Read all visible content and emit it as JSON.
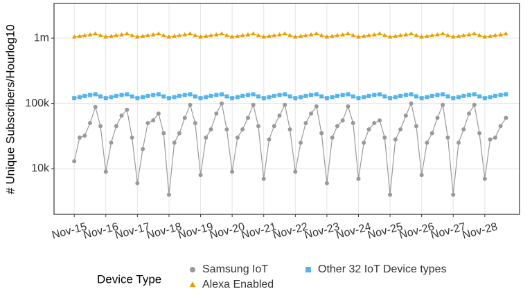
{
  "chart_data": {
    "type": "line",
    "y_label": "# Unique Subscribers/Hourlog10",
    "log_y": true,
    "grid": true,
    "legend_position": "bottom",
    "legend_title": "Device Type",
    "xlim": [
      -0.64,
      14.1
    ],
    "ylim": [
      2000,
      3400000
    ],
    "yticks": [
      {
        "value": 10000,
        "label": "10k"
      },
      {
        "value": 100000,
        "label": "100k"
      },
      {
        "value": 1000000,
        "label": "1m"
      }
    ],
    "xticks": [
      {
        "value": 0,
        "label": "Nov-15"
      },
      {
        "value": 1,
        "label": "Nov-16"
      },
      {
        "value": 2,
        "label": "Nov-17"
      },
      {
        "value": 3,
        "label": "Nov-18"
      },
      {
        "value": 4,
        "label": "Nov-19"
      },
      {
        "value": 5,
        "label": "Nov-20"
      },
      {
        "value": 6,
        "label": "Nov-21"
      },
      {
        "value": 7,
        "label": "Nov-22"
      },
      {
        "value": 8,
        "label": "Nov-23"
      },
      {
        "value": 9,
        "label": "Nov-24"
      },
      {
        "value": 10,
        "label": "Nov-25"
      },
      {
        "value": 11,
        "label": "Nov-26"
      },
      {
        "value": 12,
        "label": "Nov-27"
      },
      {
        "value": 13,
        "label": "Nov-28"
      }
    ],
    "x": [
      0,
      0.17,
      0.33,
      0.5,
      0.67,
      0.83,
      1,
      1.17,
      1.33,
      1.5,
      1.67,
      1.83,
      2,
      2.17,
      2.33,
      2.5,
      2.67,
      2.83,
      3,
      3.17,
      3.33,
      3.5,
      3.67,
      3.83,
      4,
      4.17,
      4.33,
      4.5,
      4.67,
      4.83,
      5,
      5.17,
      5.33,
      5.5,
      5.67,
      5.83,
      6,
      6.17,
      6.33,
      6.5,
      6.67,
      6.83,
      7,
      7.17,
      7.33,
      7.5,
      7.67,
      7.83,
      8,
      8.17,
      8.33,
      8.5,
      8.67,
      8.83,
      9,
      9.17,
      9.33,
      9.5,
      9.67,
      9.83,
      10,
      10.17,
      10.33,
      10.5,
      10.67,
      10.83,
      11,
      11.17,
      11.33,
      11.5,
      11.67,
      11.83,
      12,
      12.17,
      12.33,
      12.5,
      12.67,
      12.83,
      13,
      13.17,
      13.33,
      13.5,
      13.67
    ],
    "series": [
      {
        "name": "Samsung IoT",
        "color": "#999999",
        "marker": "circle",
        "values": [
          13000,
          30000,
          32000,
          50000,
          88000,
          45000,
          9000,
          25000,
          45000,
          65000,
          80000,
          30000,
          6000,
          20000,
          50000,
          55000,
          70000,
          35000,
          4000,
          25000,
          35000,
          60000,
          95000,
          50000,
          8000,
          30000,
          40000,
          70000,
          100000,
          40000,
          9000,
          30000,
          40000,
          60000,
          95000,
          45000,
          7000,
          28000,
          45000,
          65000,
          95000,
          40000,
          9000,
          25000,
          50000,
          70000,
          90000,
          35000,
          6000,
          30000,
          45000,
          55000,
          90000,
          50000,
          7000,
          25000,
          40000,
          50000,
          55000,
          30000,
          4000,
          28000,
          40000,
          65000,
          100000,
          45000,
          8000,
          25000,
          35000,
          60000,
          95000,
          30000,
          4000,
          25000,
          40000,
          70000,
          95000,
          35000,
          7000,
          28000,
          30000,
          45000,
          60000
        ]
      },
      {
        "name": "Alexa Enabled",
        "color": "#E69F00",
        "marker": "triangle",
        "values": [
          1050000,
          1070000,
          1100000,
          1130000,
          1170000,
          1100000,
          1050000,
          1070000,
          1100000,
          1130000,
          1170000,
          1100000,
          1050000,
          1070000,
          1100000,
          1130000,
          1170000,
          1100000,
          1050000,
          1070000,
          1100000,
          1130000,
          1170000,
          1100000,
          1050000,
          1070000,
          1100000,
          1130000,
          1170000,
          1100000,
          1050000,
          1070000,
          1100000,
          1130000,
          1170000,
          1100000,
          1050000,
          1070000,
          1100000,
          1130000,
          1170000,
          1100000,
          1050000,
          1070000,
          1100000,
          1130000,
          1170000,
          1100000,
          1050000,
          1070000,
          1100000,
          1130000,
          1170000,
          1100000,
          1050000,
          1070000,
          1100000,
          1130000,
          1170000,
          1100000,
          1050000,
          1070000,
          1100000,
          1130000,
          1170000,
          1100000,
          1050000,
          1070000,
          1100000,
          1130000,
          1170000,
          1100000,
          1050000,
          1070000,
          1100000,
          1130000,
          1170000,
          1100000,
          1050000,
          1070000,
          1100000,
          1130000,
          1170000
        ]
      },
      {
        "name": "Other 32 IoT Device types",
        "color": "#56B4E9",
        "marker": "square",
        "values": [
          120000,
          125000,
          130000,
          135000,
          138000,
          128000,
          120000,
          125000,
          130000,
          135000,
          138000,
          128000,
          120000,
          125000,
          130000,
          135000,
          138000,
          128000,
          120000,
          125000,
          130000,
          135000,
          138000,
          128000,
          120000,
          125000,
          130000,
          135000,
          138000,
          128000,
          120000,
          125000,
          130000,
          135000,
          138000,
          128000,
          120000,
          125000,
          130000,
          135000,
          138000,
          128000,
          120000,
          125000,
          130000,
          135000,
          138000,
          128000,
          120000,
          125000,
          130000,
          135000,
          138000,
          128000,
          120000,
          125000,
          130000,
          135000,
          138000,
          128000,
          120000,
          125000,
          130000,
          135000,
          138000,
          128000,
          120000,
          125000,
          130000,
          135000,
          138000,
          128000,
          120000,
          125000,
          130000,
          135000,
          138000,
          128000,
          120000,
          125000,
          130000,
          135000,
          138000
        ]
      }
    ]
  }
}
